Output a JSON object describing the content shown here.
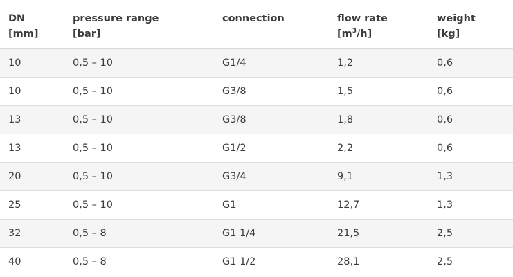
{
  "headers": [
    {
      "line1": "DN",
      "line2": "[mm]"
    },
    {
      "line1": "pressure range",
      "line2": "[bar]"
    },
    {
      "line1": "connection",
      "line2": ""
    },
    {
      "line1": "flow rate",
      "line2_pre": "[m",
      "line2_sup": "3",
      "line2_post": "/h]"
    },
    {
      "line1": "weight",
      "line2": "[kg]"
    }
  ],
  "rows": [
    [
      "10",
      "0,5 – 10",
      "G1/4",
      "1,2",
      "0,6"
    ],
    [
      "10",
      "0,5 – 10",
      "G3/8",
      "1,5",
      "0,6"
    ],
    [
      "13",
      "0,5 – 10",
      "G3/8",
      "1,8",
      "0,6"
    ],
    [
      "13",
      "0,5 – 10",
      "G1/2",
      "2,2",
      "0,6"
    ],
    [
      "20",
      "0,5 – 10",
      "G3/4",
      "9,1",
      "1,3"
    ],
    [
      "25",
      "0,5 – 10",
      "G1",
      "12,7",
      "1,3"
    ],
    [
      "32",
      "0,5 – 8",
      "G1 1/4",
      "21,5",
      "2,5"
    ],
    [
      "40",
      "0,5 – 8",
      "G1 1/2",
      "28,1",
      "2,5"
    ]
  ]
}
